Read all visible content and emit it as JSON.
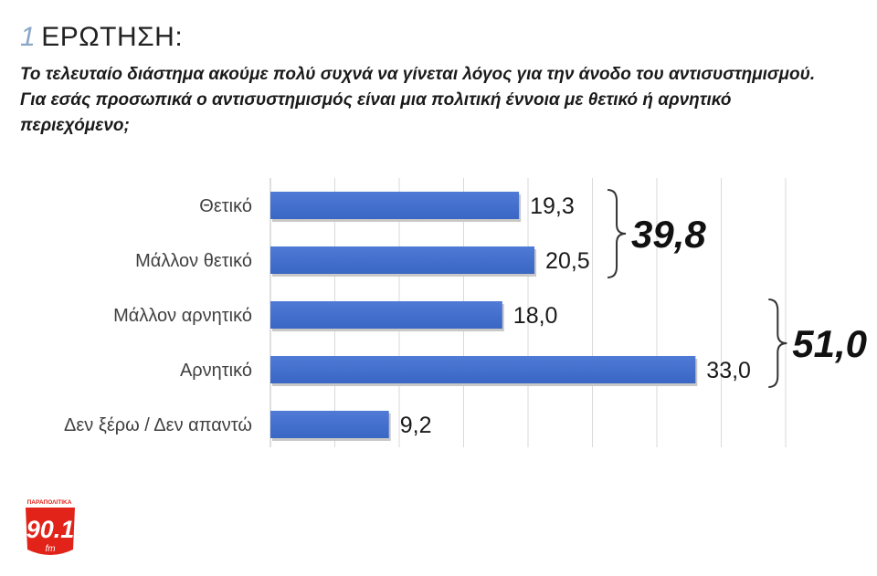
{
  "header": {
    "question_number": "1",
    "question_label": "ΕΡΩΤΗΣΗ:",
    "question_text": "Το τελευταίο διάστημα ακούμε πολύ συχνά να γίνεται λόγος για την άνοδο του αντισυστημισμού. Για εσάς προσωπικά ο αντισυστημισμός είναι μια πολιτική έννοια με θετικό ή αρνητικό περιεχόμενο;"
  },
  "chart_data": {
    "type": "bar",
    "orientation": "horizontal",
    "categories": [
      "Θετικό",
      "Μάλλον θετικό",
      "Μάλλον αρνητικό",
      "Αρνητικό",
      "Δεν ξέρω / Δεν απαντώ"
    ],
    "values": [
      19.3,
      20.5,
      18.0,
      33.0,
      9.2
    ],
    "value_labels": [
      "19,3",
      "20,5",
      "18,0",
      "33,0",
      "9,2"
    ],
    "xlim": [
      0,
      40
    ],
    "grid": true,
    "bar_color": "#3a66c4",
    "groups": [
      {
        "label": "39,8",
        "categories": [
          0,
          1
        ]
      },
      {
        "label": "51,0",
        "categories": [
          2,
          3
        ]
      }
    ]
  },
  "logo": {
    "top_text": "ΠΑΡΑΠΟΛΙΤΙΚΑ",
    "main_text": "90.1",
    "sub_text": "fm",
    "color": "#e2231a"
  }
}
